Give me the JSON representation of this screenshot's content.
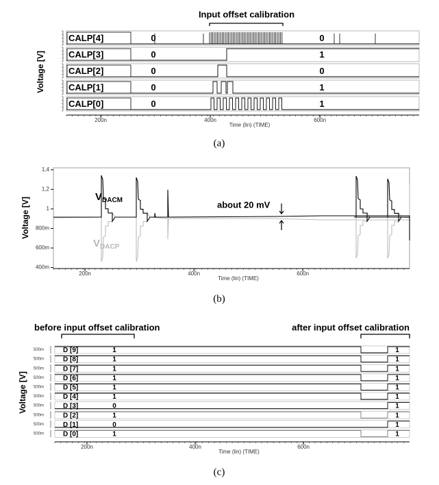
{
  "panels": [
    {
      "caption": "(a)",
      "title": "Input offset calibration",
      "y_label": "Voltage [V]",
      "x_label": "Time (lin) (TIME)",
      "xlim": [
        1.375e-07,
        7.81e-07
      ],
      "xticks": [
        {
          "value": 2e-07,
          "label": "200n"
        },
        {
          "value": 4e-07,
          "label": "400n"
        },
        {
          "value": 6e-07,
          "label": "600n"
        }
      ],
      "rows": [
        {
          "name": "CALP[4]",
          "before": "0",
          "after": "0"
        },
        {
          "name": "CALP[3]",
          "before": "0",
          "after": "1"
        },
        {
          "name": "CALP[2]",
          "before": "0",
          "after": "0"
        },
        {
          "name": "CALP[1]",
          "before": "0",
          "after": "1"
        },
        {
          "name": "CALP[0]",
          "before": "0",
          "after": "1"
        }
      ]
    },
    {
      "caption": "(b)",
      "y_label": "Voltage [V]",
      "x_label": "Time (lin) (TIME)",
      "xlim": [
        1.42e-07,
        7.96e-07
      ],
      "xticks": [
        {
          "value": 2e-07,
          "label": "200n"
        },
        {
          "value": 4e-07,
          "label": "400n"
        },
        {
          "value": 6e-07,
          "label": "600n"
        }
      ],
      "ylim": [
        0.39,
        1.42
      ],
      "yticks": [
        {
          "value": 1.4,
          "label": "1,4"
        },
        {
          "value": 1.2,
          "label": "1,2"
        },
        1,
        {
          "value": 0.8,
          "label": "800m"
        },
        {
          "value": 0.6,
          "label": "600m"
        },
        {
          "value": 0.4,
          "label": "400m"
        }
      ],
      "series_labels": [
        {
          "name": "V",
          "sub": "DACM",
          "color": "#000000"
        },
        {
          "name": "V",
          "sub": "DACP",
          "color": "#b8b8b8"
        }
      ],
      "annotation": "about 20 mV"
    },
    {
      "caption": "(c)",
      "y_label": "Voltage [V]",
      "x_label": "Time (lin) (TIME)",
      "before_label": "before input offset calibration",
      "after_label": "after input offset calibration",
      "xlim": [
        1.405e-07,
        7.96e-07
      ],
      "xticks": [
        {
          "value": 2e-07,
          "label": "200n"
        },
        {
          "value": 4e-07,
          "label": "400n"
        },
        {
          "value": 6e-07,
          "label": "600n"
        }
      ],
      "rows": [
        {
          "name": "D [9]",
          "scale": "500m",
          "before": "1",
          "after": "1"
        },
        {
          "name": "D [8]",
          "scale": "500m",
          "before": "1",
          "after": "1"
        },
        {
          "name": "D [7]",
          "scale": "500m",
          "before": "1",
          "after": "1"
        },
        {
          "name": "D [6]",
          "scale": "500m",
          "before": "1",
          "after": "1"
        },
        {
          "name": "D [5]",
          "scale": "500m",
          "before": "1",
          "after": "1"
        },
        {
          "name": "D [4]",
          "scale": "500m",
          "before": "1",
          "after": "1"
        },
        {
          "name": "D [3]",
          "scale": "500m",
          "before": "0",
          "after": "1"
        },
        {
          "name": "D [2]",
          "scale": "500m",
          "before": "1",
          "after": "1"
        },
        {
          "name": "D [1]",
          "scale": "500m",
          "before": "0",
          "after": "1"
        },
        {
          "name": "D [0]",
          "scale": "500m",
          "before": "1",
          "after": "1"
        }
      ]
    }
  ]
}
